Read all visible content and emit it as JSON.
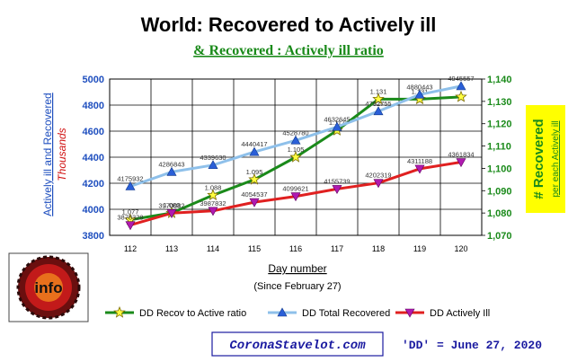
{
  "chart_data": {
    "type": "line",
    "title": "World: Recovered to Actively ill",
    "subtitle": "& Recovered : Actively ill ratio",
    "xlabel": "Day number",
    "xlabel_sub": "(Since February 27)",
    "ylabel_left_main": "Actively ill and Recovered",
    "ylabel_left_unit": "Thousands",
    "ylabel_right_main": "# Recovered",
    "ylabel_right_sub": "per each Actively ill",
    "categories": [
      "112",
      "113",
      "114",
      "115",
      "116",
      "117",
      "118",
      "119",
      "120"
    ],
    "y_left": {
      "min": 3800,
      "max": 5000,
      "step": 200,
      "ticks": [
        "3800",
        "4000",
        "4200",
        "4400",
        "4600",
        "4800",
        "5000"
      ]
    },
    "y_right": {
      "min": 1070,
      "max": 1140,
      "step": 10,
      "ticks": [
        "1,070",
        "1,080",
        "1,090",
        "1,100",
        "1,110",
        "1,120",
        "1,130",
        "1,140"
      ]
    },
    "series": [
      {
        "name": "DD Recov to Active ratio",
        "axis": "right",
        "color": "#1a8a1a",
        "marker": "star",
        "values": [
          1.077,
          1.08,
          1.088,
          1.095,
          1.105,
          1.117,
          1.131,
          1.131,
          1.132
        ],
        "labels": [
          "1.077",
          "1.080",
          "1.088",
          "1.095",
          "1.105",
          "1.117",
          "1.131",
          "1.131",
          ""
        ]
      },
      {
        "name": "DD Total Recovered",
        "axis": "left",
        "color": "#8ec0ea",
        "marker": "triangle-up",
        "values": [
          4175932,
          4286843,
          4339630,
          4440417,
          4528780,
          4632645,
          4752755,
          4880443,
          4945557
        ],
        "labels": [
          "4175932",
          "4286843",
          "4339630",
          "4440417",
          "4528780",
          "4632645",
          "4752755",
          "4880443",
          "4945557"
        ]
      },
      {
        "name": "DD Actively Ill",
        "axis": "left",
        "color": "#e02020",
        "marker": "triangle-down",
        "values": [
          3878328,
          3970082,
          3987832,
          4054537,
          4099621,
          4155739,
          4202319,
          4311188,
          4361834
        ],
        "labels": [
          "3878328",
          "3970082",
          "3987832",
          "4054537",
          "4099621",
          "4155739",
          "4202319",
          "4311188",
          "4361834"
        ]
      }
    ],
    "legend_position": "bottom",
    "grid": true
  },
  "footer": {
    "info_badge": "info",
    "website": "CoronaStavelot.com",
    "dd_note": "'DD' = June 27, 2020"
  },
  "colors": {
    "left_axis_text": "#1f4fbf",
    "left_axis_unit": "#d01010",
    "right_axis_text": "#1a8a1a",
    "right_label_bg": "#ffff00",
    "subtitle": "#1a8a1a",
    "website": "#1a1aa0",
    "dd_note": "#1a1aa0"
  }
}
